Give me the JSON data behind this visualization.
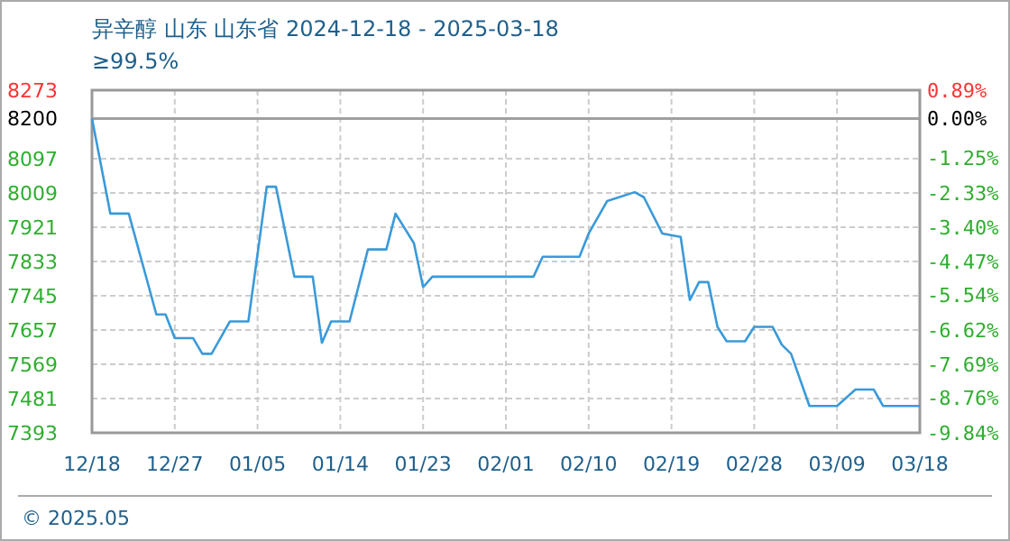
{
  "chart_data": {
    "type": "line",
    "title": "异辛醇 山东 山东省 2024-12-18 - 2025-03-18",
    "subtitle": "≥99.5%",
    "x": [
      "2024-12-18",
      "2024-12-20",
      "2024-12-22",
      "2024-12-25",
      "2024-12-26",
      "2024-12-27",
      "2024-12-29",
      "2024-12-30",
      "2024-12-31",
      "2025-01-02",
      "2025-01-04",
      "2025-01-06",
      "2025-01-07",
      "2025-01-09",
      "2025-01-11",
      "2025-01-12",
      "2025-01-13",
      "2025-01-15",
      "2025-01-17",
      "2025-01-19",
      "2025-01-20",
      "2025-01-22",
      "2025-01-23",
      "2025-01-24",
      "2025-02-04",
      "2025-02-05",
      "2025-02-09",
      "2025-02-10",
      "2025-02-12",
      "2025-02-15",
      "2025-02-16",
      "2025-02-18",
      "2025-02-20",
      "2025-02-21",
      "2025-02-22",
      "2025-02-23",
      "2025-02-24",
      "2025-02-25",
      "2025-02-27",
      "2025-02-28",
      "2025-03-02",
      "2025-03-03",
      "2025-03-04",
      "2025-03-06",
      "2025-03-09",
      "2025-03-11",
      "2025-03-13",
      "2025-03-14",
      "2025-03-18"
    ],
    "series": [
      {
        "color": "#3a9ad9",
        "values": [
          8200,
          7956,
          7956,
          7697,
          7697,
          7636,
          7636,
          7596,
          7596,
          7679,
          7679,
          8025,
          8025,
          7794,
          7794,
          7624,
          7679,
          7679,
          7864,
          7864,
          7956,
          7880,
          7767,
          7794,
          7794,
          7845,
          7845,
          7905,
          7988,
          8011,
          7998,
          7905,
          7896,
          7734,
          7780,
          7780,
          7665,
          7628,
          7628,
          7665,
          7665,
          7619,
          7596,
          7462,
          7462,
          7504,
          7504,
          7462,
          7462
        ]
      }
    ],
    "xlim": [
      "2024-12-18",
      "2025-03-18"
    ],
    "xticks": [
      {
        "value": "2024-12-18",
        "label": "12/18"
      },
      {
        "value": "2024-12-27",
        "label": "12/27"
      },
      {
        "value": "2025-01-05",
        "label": "01/05"
      },
      {
        "value": "2025-01-14",
        "label": "01/14"
      },
      {
        "value": "2025-01-23",
        "label": "01/23"
      },
      {
        "value": "2025-02-01",
        "label": "02/01"
      },
      {
        "value": "2025-02-10",
        "label": "02/10"
      },
      {
        "value": "2025-02-19",
        "label": "02/19"
      },
      {
        "value": "2025-02-28",
        "label": "02/28"
      },
      {
        "value": "2025-03-09",
        "label": "03/09"
      },
      {
        "value": "2025-03-18",
        "label": "03/18"
      }
    ],
    "ylim": [
      7393,
      8273
    ],
    "yticks": [
      7393,
      7481,
      7569,
      7657,
      7745,
      7833,
      7921,
      8009,
      8097,
      8200,
      8273
    ],
    "y2lim": [
      -9.84,
      0.89
    ],
    "y2ticks": [
      {
        "value": -9.84,
        "label": "-9.84%"
      },
      {
        "value": -8.76,
        "label": "-8.76%"
      },
      {
        "value": -7.69,
        "label": "-7.69%"
      },
      {
        "value": -6.62,
        "label": "-6.62%"
      },
      {
        "value": -5.54,
        "label": "-5.54%"
      },
      {
        "value": -4.47,
        "label": "-4.47%"
      },
      {
        "value": -3.4,
        "label": "-3.40%"
      },
      {
        "value": -2.33,
        "label": "-2.33%"
      },
      {
        "value": -1.25,
        "label": "-1.25%"
      },
      {
        "value": 0,
        "label": "0.00%"
      },
      {
        "value": 0.89,
        "label": "0.89%"
      }
    ],
    "ref_lines": [
      {
        "axis": "y",
        "value": 8200,
        "color": "#a0a0a0"
      }
    ],
    "grid": true,
    "annotations": [
      "© 2025.05"
    ]
  }
}
